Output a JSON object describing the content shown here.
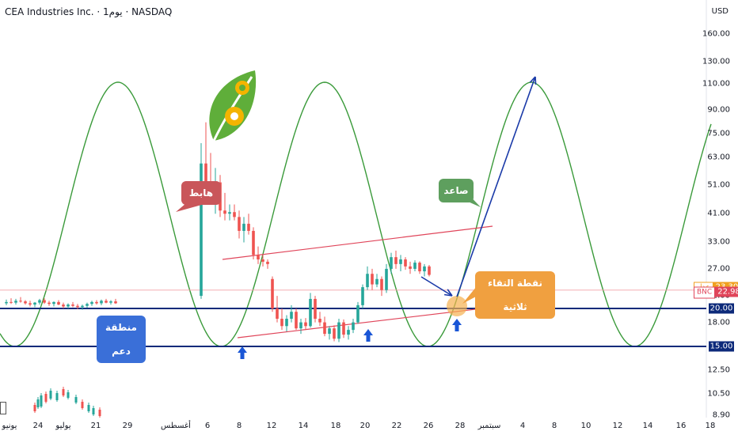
{
  "header": {
    "title": "CEA Industries Inc. · 1يوم · NASDAQ",
    "currency": "USD"
  },
  "chart_data": {
    "type": "candlestick",
    "y_scale": "log",
    "ylim": [
      8.9,
      160
    ],
    "y_ticks": [
      160.0,
      130.0,
      110.0,
      90.0,
      75.0,
      63.0,
      51.0,
      41.0,
      33.0,
      27.0,
      22.0,
      18.0,
      12.5,
      10.5,
      8.9
    ],
    "y_tick_labels": [
      "160.00",
      "130.00",
      "110.00",
      "90.00",
      "75.00",
      "63.00",
      "51.00",
      "41.00",
      "33.00",
      "27.00",
      "22.00",
      "18.00",
      "12.50",
      "10.50",
      "8.90"
    ],
    "x_tick_labels": [
      "يونيو",
      "24",
      "يوليو",
      "21",
      "29",
      "أغسطس",
      "6",
      "8",
      "12",
      "14",
      "18",
      "20",
      "22",
      "26",
      "28",
      "سبتمبر",
      "4",
      "8",
      "10",
      "12",
      "14",
      "16",
      "18"
    ],
    "candles": [
      [
        20.8,
        21.4,
        20.5,
        21.0
      ],
      [
        21.0,
        21.6,
        20.7,
        20.9
      ],
      [
        20.9,
        21.5,
        20.6,
        21.2
      ],
      [
        21.2,
        21.8,
        20.9,
        21.1
      ],
      [
        21.1,
        21.3,
        20.6,
        20.8
      ],
      [
        20.8,
        21.2,
        20.3,
        20.6
      ],
      [
        20.6,
        21.0,
        20.2,
        20.9
      ],
      [
        20.9,
        21.5,
        20.6,
        21.3
      ],
      [
        21.3,
        21.6,
        20.7,
        20.9
      ],
      [
        20.9,
        21.2,
        20.4,
        20.7
      ],
      [
        20.7,
        21.1,
        20.3,
        21.0
      ],
      [
        21.0,
        21.3,
        20.5,
        20.6
      ],
      [
        20.6,
        20.9,
        20.0,
        20.3
      ],
      [
        20.3,
        20.8,
        20.0,
        20.6
      ],
      [
        20.6,
        21.0,
        20.2,
        20.4
      ],
      [
        20.4,
        20.7,
        19.9,
        20.2
      ],
      [
        20.2,
        20.6,
        19.8,
        20.4
      ],
      [
        20.4,
        20.9,
        20.1,
        20.7
      ],
      [
        20.7,
        21.2,
        20.4,
        21.0
      ],
      [
        21.0,
        21.3,
        20.6,
        20.8
      ],
      [
        20.8,
        21.4,
        20.5,
        21.2
      ],
      [
        21.2,
        21.5,
        20.8,
        20.9
      ],
      [
        20.9,
        21.3,
        20.6,
        21.1
      ],
      [
        21.1,
        21.5,
        20.7,
        20.8
      ],
      [
        22.0,
        70.0,
        21.5,
        60.0
      ],
      [
        60.0,
        82.0,
        48.0,
        52.0
      ],
      [
        52.0,
        65.0,
        44.0,
        46.0
      ],
      [
        46.0,
        58.0,
        41.0,
        52.0
      ],
      [
        52.0,
        55.0,
        40.0,
        42.0
      ],
      [
        42.0,
        48.0,
        39.0,
        41.0
      ],
      [
        41.0,
        44.0,
        39.0,
        41.5
      ],
      [
        41.5,
        44.0,
        39.0,
        40.0
      ],
      [
        40.0,
        42.0,
        34.0,
        36.0
      ],
      [
        36.0,
        40.0,
        33.0,
        38.0
      ],
      [
        38.0,
        41.0,
        35.0,
        36.0
      ],
      [
        36.0,
        37.0,
        29.0,
        30.0
      ],
      [
        30.0,
        32.0,
        28.0,
        29.0
      ],
      [
        29.0,
        30.0,
        27.5,
        28.5
      ],
      [
        28.5,
        29.0,
        27.0,
        28.0
      ],
      [
        25.0,
        25.5,
        19.5,
        20.0
      ],
      [
        20.0,
        22.0,
        18.0,
        18.5
      ],
      [
        18.5,
        20.0,
        17.0,
        17.5
      ],
      [
        17.5,
        19.0,
        16.8,
        18.5
      ],
      [
        18.5,
        20.5,
        18.0,
        19.5
      ],
      [
        19.5,
        20.0,
        17.0,
        17.2
      ],
      [
        17.2,
        18.5,
        16.5,
        18.0
      ],
      [
        18.0,
        18.6,
        17.0,
        17.5
      ],
      [
        17.5,
        22.5,
        17.3,
        21.5
      ],
      [
        21.5,
        22.0,
        18.0,
        18.5
      ],
      [
        18.5,
        19.5,
        17.5,
        18.0
      ],
      [
        18.0,
        18.8,
        16.2,
        16.5
      ],
      [
        16.5,
        17.5,
        15.8,
        17.2
      ],
      [
        17.2,
        17.6,
        15.6,
        15.9
      ],
      [
        15.9,
        18.5,
        15.5,
        18.0
      ],
      [
        18.0,
        18.4,
        16.0,
        16.4
      ],
      [
        16.4,
        17.5,
        15.8,
        17.0
      ],
      [
        17.0,
        18.5,
        16.6,
        18.0
      ],
      [
        18.0,
        21.0,
        17.8,
        20.5
      ],
      [
        20.5,
        24.0,
        20.0,
        23.5
      ],
      [
        23.5,
        27.5,
        23.0,
        26.0
      ],
      [
        26.0,
        27.0,
        23.0,
        24.0
      ],
      [
        24.0,
        26.0,
        23.5,
        25.0
      ],
      [
        25.0,
        25.5,
        22.0,
        23.0
      ],
      [
        23.0,
        28.0,
        22.5,
        27.0
      ],
      [
        27.0,
        30.5,
        26.0,
        29.5
      ],
      [
        29.5,
        31.0,
        27.0,
        28.0
      ],
      [
        28.0,
        30.0,
        26.5,
        29.0
      ],
      [
        29.0,
        29.5,
        26.8,
        27.5
      ],
      [
        27.5,
        28.5,
        26.0,
        27.0
      ],
      [
        27.0,
        28.8,
        26.5,
        28.3
      ],
      [
        28.3,
        28.6,
        26.0,
        26.5
      ],
      [
        26.5,
        28.0,
        25.5,
        27.5
      ],
      [
        27.5,
        27.8,
        25.5,
        25.8
      ],
      [
        25.8,
        26.5,
        24.5,
        25.0
      ],
      [
        25.0,
        25.5,
        20.5,
        21.0
      ],
      [
        21.0,
        22.0,
        20.0,
        20.8
      ],
      [
        20.8,
        22.5,
        20.5,
        22.2
      ],
      [
        22.2,
        22.5,
        20.5,
        20.8
      ],
      [
        20.8,
        21.2,
        19.0,
        19.4
      ],
      [
        19.4,
        20.5,
        18.8,
        20.2
      ],
      [
        20.2,
        20.8,
        19.8,
        20.6
      ],
      [
        20.6,
        22.0,
        20.3,
        21.8
      ],
      [
        21.8,
        22.5,
        21.0,
        22.2
      ],
      [
        22.2,
        24.0,
        21.8,
        23.8
      ],
      [
        23.8,
        26.0,
        23.5,
        25.5
      ],
      [
        25.5,
        26.2,
        24.8,
        26.0
      ],
      [
        26.0,
        26.5,
        25.0,
        25.2
      ],
      [
        25.2,
        25.5,
        23.5,
        23.8
      ],
      [
        23.8,
        24.2,
        23.0,
        23.3
      ],
      [
        23.3,
        23.6,
        22.7,
        23.0
      ]
    ],
    "support_levels": [
      20.0,
      15.0
    ],
    "price_tags": [
      {
        "label": "عدل",
        "value": "23.30",
        "color": "#f0a020"
      },
      {
        "label": "BNC",
        "value": "22.98",
        "color": "#e0455a"
      }
    ],
    "level_badges": [
      "20.00",
      "15.00"
    ],
    "annotations": {
      "down": "هابط",
      "up": "صاعد",
      "support": "منطقة دعم",
      "triple": "نقطة التقاء ثلاثية"
    }
  },
  "colors": {
    "up": "#26a69a",
    "down": "#ef5350",
    "wave": "#3a9a3a",
    "support": "#0d2a7a",
    "channel": "#e0455a",
    "arrow": "#1a3aa8"
  }
}
